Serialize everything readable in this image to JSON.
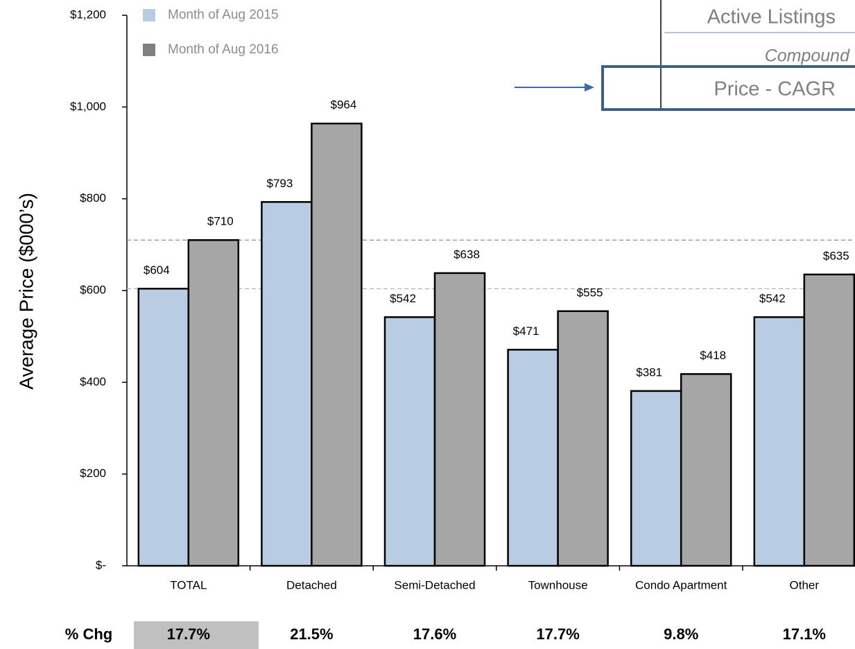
{
  "chart_data": {
    "type": "bar",
    "y_label": "Average Price ($000’s)",
    "categories": [
      "TOTAL",
      "Detached",
      "Semi-Detached",
      "Townhouse",
      "Condo Apartment",
      "Other"
    ],
    "series": [
      {
        "name": "Month of Aug 2015",
        "color": "#b8cde3",
        "values": [
          604,
          793,
          542,
          471,
          381,
          542
        ],
        "value_labels": [
          "$604",
          "$793",
          "$542",
          "$471",
          "$381",
          "$542"
        ]
      },
      {
        "name": "Month of Aug 2016",
        "color": "#a6a6a6",
        "values": [
          710,
          964,
          638,
          555,
          418,
          635
        ],
        "value_labels": [
          "$710",
          "$964",
          "$638",
          "$555",
          "$418",
          "$635"
        ]
      }
    ],
    "ylim": [
      0,
      1200
    ],
    "yticks": [
      {
        "value": 0,
        "label": "$-"
      },
      {
        "value": 200,
        "label": "$200"
      },
      {
        "value": 400,
        "label": "$400"
      },
      {
        "value": 600,
        "label": "$600"
      },
      {
        "value": 800,
        "label": "$800"
      },
      {
        "value": 1000,
        "label": "$1,000"
      },
      {
        "value": 1200,
        "label": "$1,200"
      }
    ],
    "pct_change": {
      "label": "% Chg",
      "values": [
        17.7,
        21.5,
        17.6,
        17.7,
        9.8,
        17.1
      ],
      "value_labels": [
        "17.7%",
        "21.5%",
        "17.6%",
        "17.7%",
        "9.8%",
        "17.1%"
      ]
    },
    "inset": {
      "line1": "Active Listings",
      "line2": "Compound",
      "line3": "Price - CAGR"
    }
  }
}
